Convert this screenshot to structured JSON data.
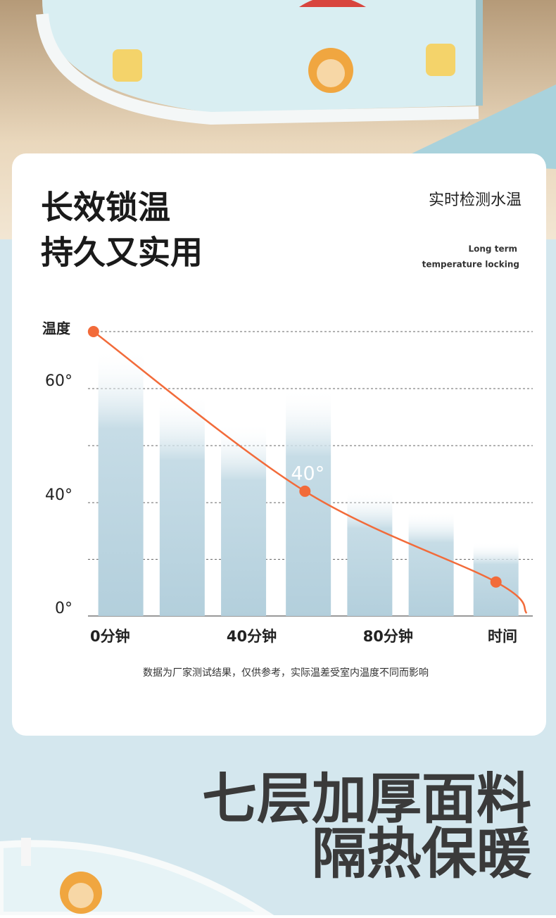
{
  "header": {
    "title_lines": [
      "长效锁温",
      "持久又实用"
    ],
    "tagline": "实时检测水温",
    "tagline_en": [
      "Long term",
      "temperature locking"
    ]
  },
  "chart_data": {
    "type": "bar",
    "y_label": "温度",
    "x_label": "时间",
    "x": [
      9,
      27,
      45,
      64,
      82,
      100,
      119
    ],
    "values": [
      67,
      59,
      54,
      60,
      42,
      37,
      26
    ],
    "color": "#b9d4e0",
    "xlim": [
      0,
      130
    ],
    "xticks": [
      {
        "value": 0,
        "label": "0分钟"
      },
      {
        "value": 40,
        "label": "40分钟"
      },
      {
        "value": 80,
        "label": "80分钟"
      }
    ],
    "ylim": [
      0,
      70
    ],
    "yticks": [
      {
        "value": 0,
        "label": "0°"
      },
      {
        "value": 40,
        "label": "40°"
      },
      {
        "value": 60,
        "label": "60°"
      }
    ],
    "grid_values": [
      20,
      40,
      50,
      60,
      70
    ],
    "line": {
      "color": "#f26b3a",
      "x": [
        1,
        63,
        119,
        128
      ],
      "values": [
        70,
        42,
        12,
        1
      ],
      "markers": [
        true,
        true,
        true,
        false
      ]
    },
    "annotation": "40°"
  },
  "footnote": "数据为厂家测试结果，仅供参考，实际温差受室内温度不同而影响",
  "slogan": [
    "七层加厚面料",
    "隔热保暖"
  ]
}
